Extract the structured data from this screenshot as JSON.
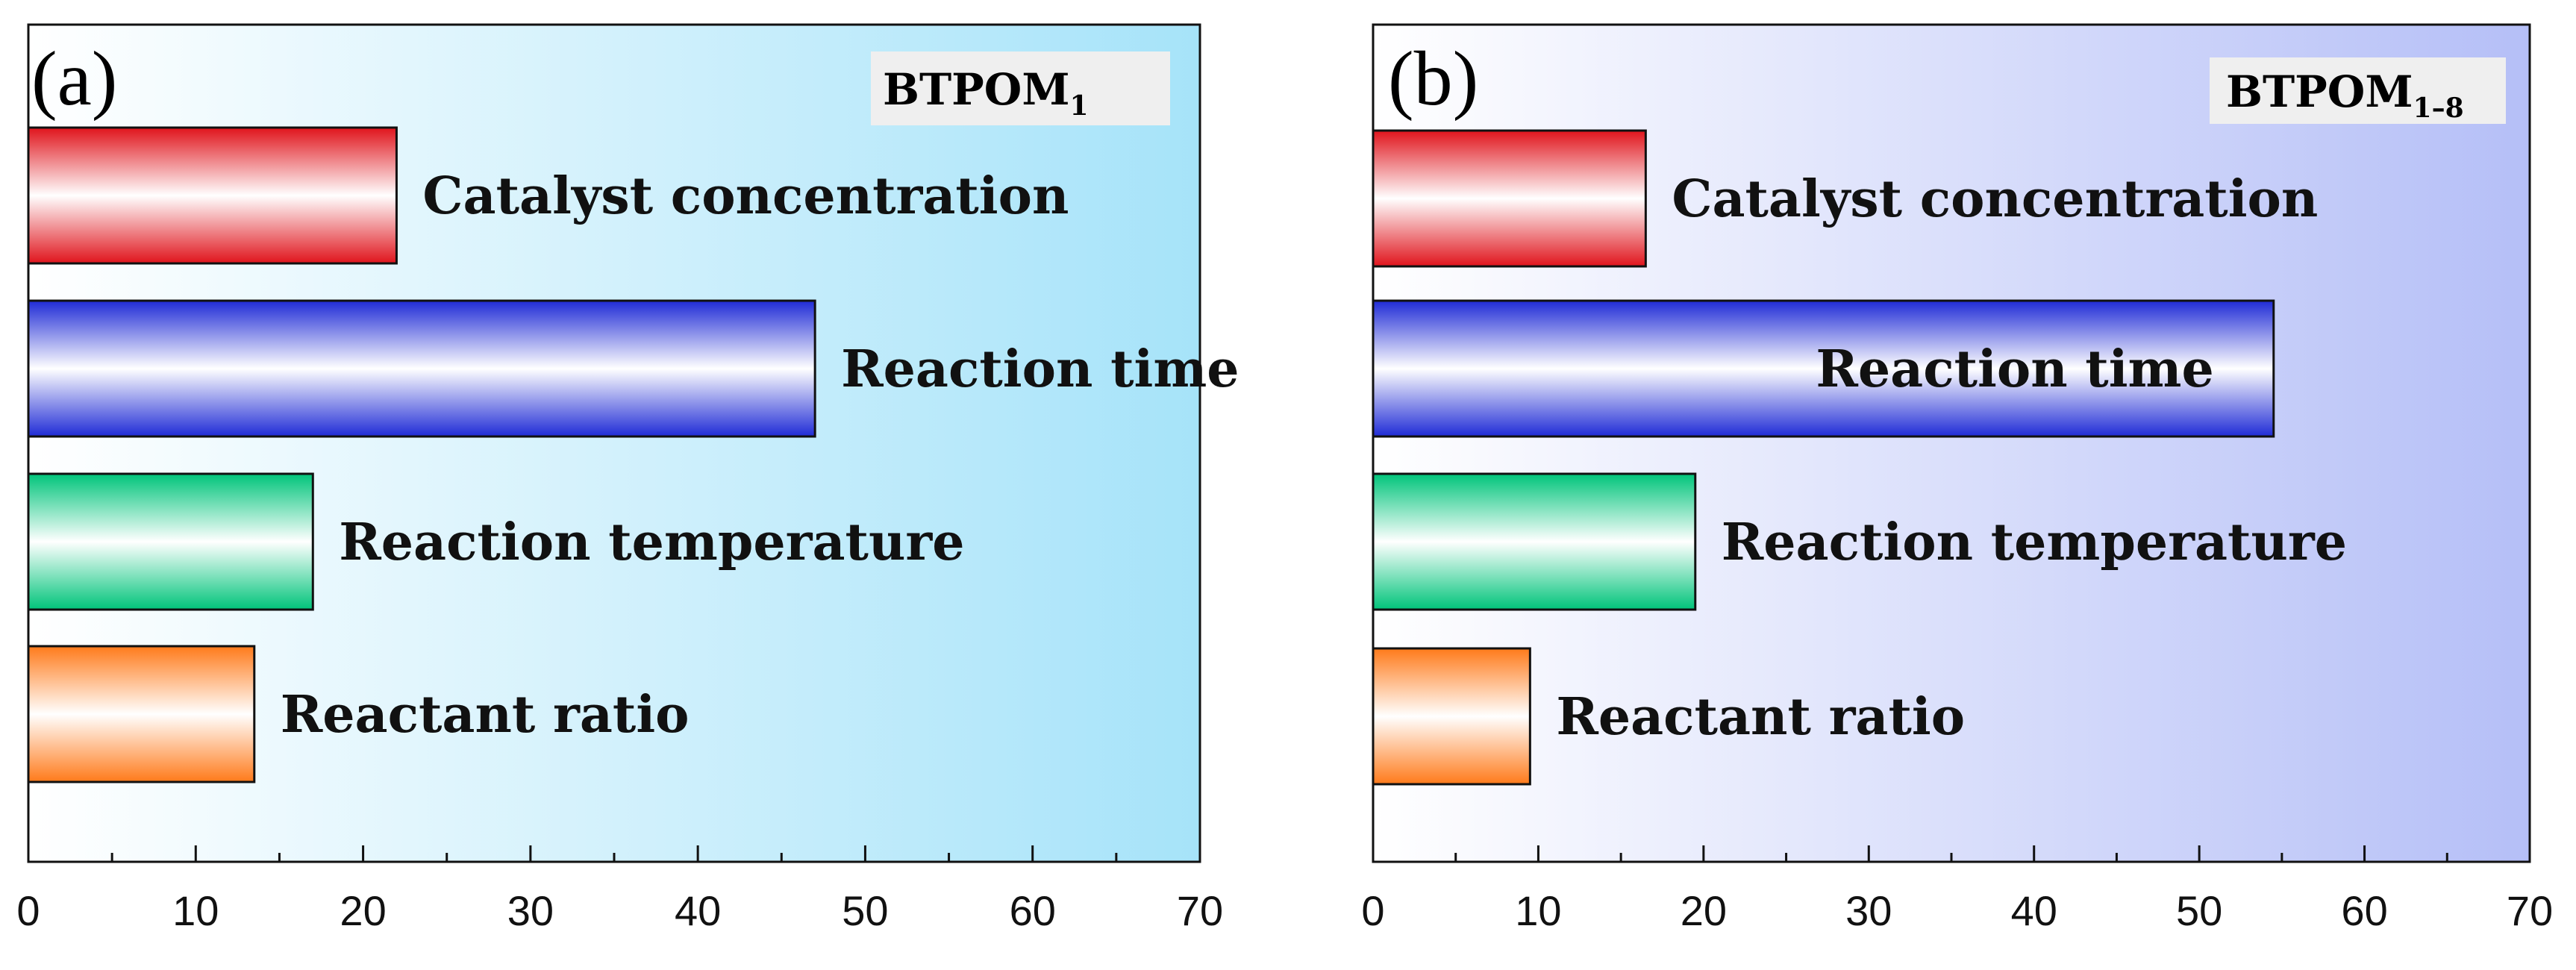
{
  "chart_data": [
    {
      "type": "bar",
      "orientation": "horizontal",
      "panel_label": "(a)",
      "title_main": "BTPOM",
      "title_subscript": "1",
      "categories": [
        "Catalyst concentration",
        "Reaction time",
        "Reaction temperature",
        "Reactant ratio"
      ],
      "values": [
        22,
        47,
        17,
        13.5
      ],
      "bar_colors": [
        "#e0141c",
        "#1f2bd6",
        "#00c47a",
        "#ff7a1a"
      ],
      "background_gradient": [
        "#ffffff",
        "#a6e3f9"
      ],
      "xlim": [
        0,
        70
      ],
      "xticks": [
        "0",
        "10",
        "20",
        "30",
        "40",
        "50",
        "60",
        "70"
      ],
      "xlabel": "",
      "ylabel": "",
      "legend": "top-right"
    },
    {
      "type": "bar",
      "orientation": "horizontal",
      "panel_label": "(b)",
      "title_main": "BTPOM",
      "title_subscript": "1–8",
      "categories": [
        "Catalyst concentration",
        "Reaction time",
        "Reaction temperature",
        "Reactant ratio"
      ],
      "values": [
        16.5,
        54.5,
        19.5,
        9.5
      ],
      "bar_colors": [
        "#e0141c",
        "#1f2bd6",
        "#00c47a",
        "#ff7a1a"
      ],
      "background_gradient": [
        "#ffffff",
        "#b5bff7"
      ],
      "xlim": [
        0,
        70
      ],
      "xticks": [
        "0",
        "10",
        "20",
        "30",
        "40",
        "50",
        "60",
        "70"
      ],
      "xlabel": "",
      "ylabel": "",
      "legend": "top-right"
    }
  ]
}
